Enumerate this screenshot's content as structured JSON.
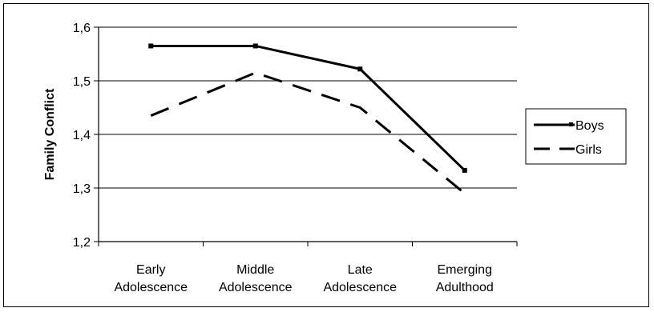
{
  "chart_data": {
    "type": "line",
    "ylabel": "Family Conflict",
    "xlabel": "",
    "ylim": [
      1.2,
      1.6
    ],
    "yticks": [
      {
        "value": 1.2,
        "label": "1,2"
      },
      {
        "value": 1.3,
        "label": "1,3"
      },
      {
        "value": 1.4,
        "label": "1,4"
      },
      {
        "value": 1.5,
        "label": "1,5"
      },
      {
        "value": 1.6,
        "label": "1,6"
      }
    ],
    "categories": [
      [
        "Early",
        "Adolescence"
      ],
      [
        "Middle",
        "Adolescence"
      ],
      [
        "Late",
        "Adolescence"
      ],
      [
        "Emerging",
        "Adulthood"
      ]
    ],
    "series": [
      {
        "name": "Boys",
        "style": "solid",
        "color": "#000000",
        "values": [
          1.565,
          1.565,
          1.522,
          1.333
        ]
      },
      {
        "name": "Girls",
        "style": "dashed",
        "color": "#000000",
        "values": [
          1.435,
          1.515,
          1.45,
          1.29
        ]
      }
    ],
    "grid": "horizontal",
    "legend_position": "right"
  }
}
